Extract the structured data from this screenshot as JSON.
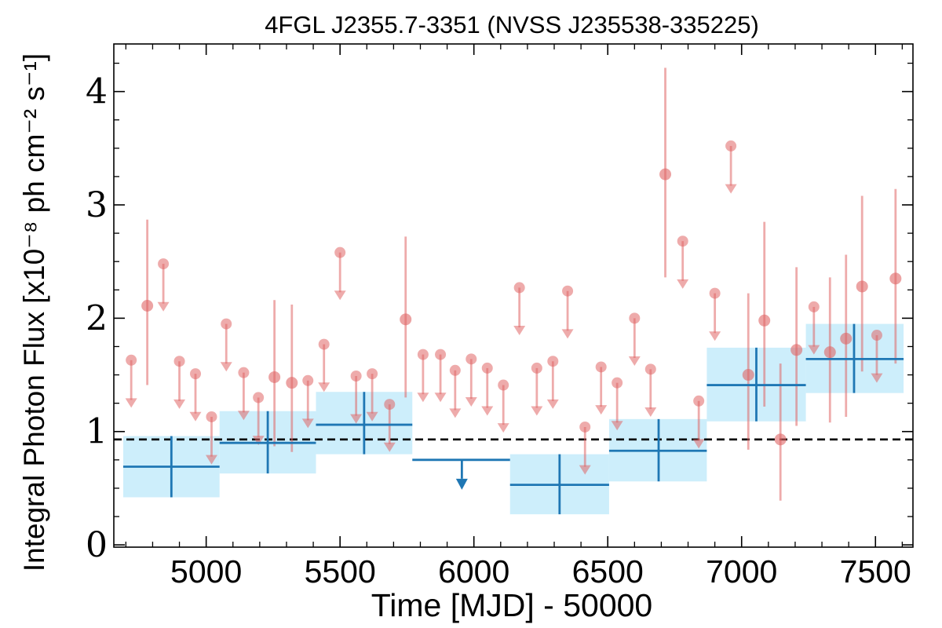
{
  "chart_data": {
    "type": "scatter",
    "title": "4FGL J2355.7-3351 (NVSS J235538-335225)",
    "xlabel": "Time [MJD] - 50000",
    "ylabel": "Integral Photon Flux [x10⁻⁸ ph cm⁻² s⁻¹]",
    "xlim": [
      4655,
      7640
    ],
    "ylim": [
      -0.02,
      4.42
    ],
    "xticks": [
      5000,
      5500,
      6000,
      6500,
      7000,
      7500
    ],
    "yticks": [
      0,
      1,
      2,
      3,
      4
    ],
    "xtick_labels": [
      "5000",
      "5500",
      "6000",
      "6500",
      "7000",
      "7500"
    ],
    "ytick_labels": [
      "0",
      "1",
      "2",
      "3",
      "4"
    ],
    "reference_line": {
      "y": 0.93,
      "style": "dashed",
      "color": "#000000"
    },
    "colors": {
      "short_bins": "#e06666",
      "long_bins": "#1f77b4",
      "long_bin_band": "#cdeefb"
    },
    "series": [
      {
        "bin": "short",
        "detections": [
          {
            "x": 4780,
            "y": 2.11,
            "ylo": 1.41,
            "yhi": 2.87
          },
          {
            "x": 5255,
            "y": 1.48,
            "ylo": 0.87,
            "yhi": 2.16
          },
          {
            "x": 5320,
            "y": 1.43,
            "ylo": 0.82,
            "yhi": 2.12
          },
          {
            "x": 5745,
            "y": 1.99,
            "ylo": 1.3,
            "yhi": 2.72
          },
          {
            "x": 6715,
            "y": 3.27,
            "ylo": 2.36,
            "yhi": 4.21
          },
          {
            "x": 7025,
            "y": 1.5,
            "ylo": 0.84,
            "yhi": 2.22
          },
          {
            "x": 7085,
            "y": 1.98,
            "ylo": 1.22,
            "yhi": 2.85
          },
          {
            "x": 7145,
            "y": 0.93,
            "ylo": 0.39,
            "yhi": 1.6
          },
          {
            "x": 7205,
            "y": 1.72,
            "ylo": 1.05,
            "yhi": 2.45
          },
          {
            "x": 7330,
            "y": 1.7,
            "ylo": 1.08,
            "yhi": 2.36
          },
          {
            "x": 7390,
            "y": 1.82,
            "ylo": 1.13,
            "yhi": 2.56
          },
          {
            "x": 7450,
            "y": 2.28,
            "ylo": 1.53,
            "yhi": 3.08
          },
          {
            "x": 7575,
            "y": 2.35,
            "ylo": 1.6,
            "yhi": 3.14
          }
        ],
        "upper_limits": [
          {
            "x": 4720,
            "y": 1.63
          },
          {
            "x": 4840,
            "y": 2.48
          },
          {
            "x": 4900,
            "y": 1.62
          },
          {
            "x": 4960,
            "y": 1.51
          },
          {
            "x": 5020,
            "y": 1.13
          },
          {
            "x": 5075,
            "y": 1.95
          },
          {
            "x": 5140,
            "y": 1.52
          },
          {
            "x": 5195,
            "y": 1.3
          },
          {
            "x": 5380,
            "y": 1.45
          },
          {
            "x": 5440,
            "y": 1.77
          },
          {
            "x": 5500,
            "y": 2.58
          },
          {
            "x": 5560,
            "y": 1.49
          },
          {
            "x": 5620,
            "y": 1.51
          },
          {
            "x": 5685,
            "y": 1.24
          },
          {
            "x": 5810,
            "y": 1.68
          },
          {
            "x": 5875,
            "y": 1.68
          },
          {
            "x": 5930,
            "y": 1.54
          },
          {
            "x": 5990,
            "y": 1.64
          },
          {
            "x": 6050,
            "y": 1.56
          },
          {
            "x": 6110,
            "y": 1.41
          },
          {
            "x": 6170,
            "y": 2.27
          },
          {
            "x": 6235,
            "y": 1.56
          },
          {
            "x": 6295,
            "y": 1.62
          },
          {
            "x": 6350,
            "y": 2.24
          },
          {
            "x": 6415,
            "y": 1.04
          },
          {
            "x": 6475,
            "y": 1.57
          },
          {
            "x": 6535,
            "y": 1.43
          },
          {
            "x": 6600,
            "y": 2.0
          },
          {
            "x": 6660,
            "y": 1.55
          },
          {
            "x": 6780,
            "y": 2.68
          },
          {
            "x": 6840,
            "y": 1.27
          },
          {
            "x": 6900,
            "y": 2.22
          },
          {
            "x": 6960,
            "y": 3.52
          },
          {
            "x": 7270,
            "y": 2.1
          },
          {
            "x": 7505,
            "y": 1.85
          }
        ]
      },
      {
        "bin": "long",
        "detections": [
          {
            "x": 4870,
            "x0": 4690,
            "x1": 5050,
            "y": 0.69,
            "ylo": 0.42,
            "yhi": 0.96
          },
          {
            "x": 5230,
            "x0": 5050,
            "x1": 5410,
            "y": 0.9,
            "ylo": 0.63,
            "yhi": 1.18
          },
          {
            "x": 5590,
            "x0": 5410,
            "x1": 5770,
            "y": 1.06,
            "ylo": 0.8,
            "yhi": 1.35
          },
          {
            "x": 6320,
            "x0": 6135,
            "x1": 6505,
            "y": 0.53,
            "ylo": 0.27,
            "yhi": 0.8
          },
          {
            "x": 6690,
            "x0": 6505,
            "x1": 6870,
            "y": 0.83,
            "ylo": 0.56,
            "yhi": 1.11
          },
          {
            "x": 7055,
            "x0": 6870,
            "x1": 7240,
            "y": 1.41,
            "ylo": 1.09,
            "yhi": 1.74
          },
          {
            "x": 7420,
            "x0": 7240,
            "x1": 7605,
            "y": 1.64,
            "ylo": 1.34,
            "yhi": 1.95
          }
        ],
        "upper_limits": [
          {
            "x": 5955,
            "x0": 5770,
            "x1": 6135,
            "y": 0.75
          }
        ]
      }
    ]
  }
}
